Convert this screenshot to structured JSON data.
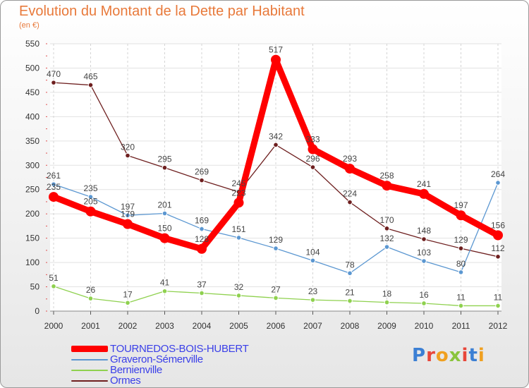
{
  "title": "Evolution du Montant de la Dette par Habitant",
  "subtitle": "(en €)",
  "logo": {
    "text": "Proxiti",
    "colors": [
      "#3b7fd4",
      "#e8463a",
      "#f0a020",
      "#8ac43c",
      "#e8463a",
      "#3b7fd4",
      "#f0a020"
    ]
  },
  "chart_data": {
    "type": "line",
    "title": "Evolution du Montant de la Dette par Habitant",
    "subtitle": "(en €)",
    "xlabel": "",
    "ylabel": "",
    "x": [
      "2000",
      "2001",
      "2002",
      "2003",
      "2004",
      "2005",
      "2006",
      "2007",
      "2008",
      "2009",
      "2010",
      "2011",
      "2012"
    ],
    "ylim": [
      0,
      550
    ],
    "yticks": [
      0,
      50,
      100,
      150,
      200,
      250,
      300,
      350,
      400,
      450,
      500,
      550
    ],
    "grid": true,
    "legend_position": "bottom-left",
    "series": [
      {
        "name": "TOURNEDOS-BOIS-HUBERT",
        "color": "#ff0000",
        "values": [
          235,
          205,
          179,
          150,
          128,
          223,
          517,
          333,
          293,
          258,
          241,
          197,
          156
        ]
      },
      {
        "name": "Graveron-Sémerville",
        "color": "#5b97d1",
        "values": [
          261,
          235,
          197,
          201,
          169,
          151,
          129,
          104,
          78,
          132,
          103,
          80,
          264
        ]
      },
      {
        "name": "Bernienville",
        "color": "#8fd14f",
        "values": [
          51,
          26,
          17,
          41,
          37,
          32,
          27,
          23,
          21,
          18,
          16,
          11,
          11
        ]
      },
      {
        "name": "Ormes",
        "color": "#6e1f1f",
        "values": [
          470,
          465,
          320,
          295,
          269,
          245,
          342,
          296,
          224,
          170,
          148,
          129,
          112
        ]
      }
    ]
  }
}
